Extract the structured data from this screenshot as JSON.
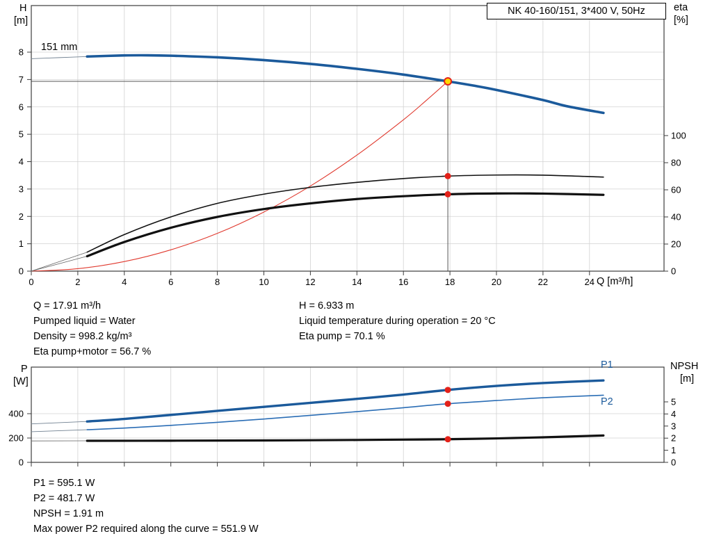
{
  "title_box": "NK 40-160/151, 3*400 V, 50Hz",
  "axis_labels": {
    "h": "H",
    "h_unit": "[m]",
    "eta": "eta",
    "eta_unit": "[%]",
    "q": "Q [m³/h]",
    "p": "P",
    "p_unit": "[W]",
    "npsh": "NPSH",
    "npsh_unit": "[m]"
  },
  "curve_labels": {
    "impeller": "151 mm",
    "p1": "P1",
    "p2": "P2"
  },
  "info_top_left": [
    "Q = 17.91 m³/h",
    "Pumped liquid = Water",
    "Density = 998.2 kg/m³",
    "Eta pump+motor = 56.7 %"
  ],
  "info_top_right": [
    "H = 6.933 m",
    "Liquid temperature during operation = 20 °C",
    "Eta pump = 70.1 %"
  ],
  "info_bottom": [
    "P1 = 595.1 W",
    "P2 = 481.7 W",
    "NPSH = 1.91 m",
    "Max power P2 required along the curve = 551.9 W"
  ],
  "colors": {
    "curve_blue": "#1b5a9b",
    "curve_blue_thin": "#2a6db5",
    "curve_black": "#111111",
    "system_red": "#e0392e",
    "marker_red": "#e32119",
    "duty_yellow": "#ffd800",
    "grid": "#d2d2d2",
    "frame": "#3c3c3c"
  },
  "chart_data": [
    {
      "type": "line",
      "title": "NK 40-160/151, 3*400 V, 50Hz",
      "xlabel": "Q [m³/h]",
      "ylabel_left": "H [m]",
      "ylabel_right": "eta [%]",
      "xlim": [
        0,
        27.2
      ],
      "ylim_left": [
        0,
        9.7
      ],
      "ylim_right": [
        0,
        196
      ],
      "grid": true,
      "q_ticks": [
        0,
        2,
        4,
        6,
        8,
        10,
        12,
        14,
        16,
        18,
        20,
        22,
        24
      ],
      "h_ticks": [
        0,
        1,
        2,
        3,
        4,
        5,
        6,
        7,
        8
      ],
      "eta_ticks": [
        0,
        20,
        40,
        60,
        80,
        100
      ],
      "duty_point": {
        "q": 17.91,
        "h": 6.933,
        "eta_pump": 70.1,
        "eta_pump_motor": 56.7
      },
      "series": [
        {
          "name": "head-ext",
          "axis": "H",
          "color": "#708090",
          "width": 0.9,
          "points": [
            [
              0,
              7.76
            ],
            [
              1.2,
              7.8
            ],
            [
              2.4,
              7.84
            ]
          ]
        },
        {
          "name": "head-151mm",
          "axis": "H",
          "color": "#1b5a9b",
          "width": 3.6,
          "points": [
            [
              2.4,
              7.84
            ],
            [
              4,
              7.88
            ],
            [
              5,
              7.885
            ],
            [
              6,
              7.87
            ],
            [
              8,
              7.81
            ],
            [
              10,
              7.71
            ],
            [
              12,
              7.57
            ],
            [
              14,
              7.39
            ],
            [
              16,
              7.18
            ],
            [
              17.91,
              6.933
            ],
            [
              19,
              6.78
            ],
            [
              20,
              6.62
            ],
            [
              22,
              6.25
            ],
            [
              23,
              6.03
            ],
            [
              24.6,
              5.78
            ]
          ]
        },
        {
          "name": "system-curve",
          "axis": "H",
          "color": "#e0392e",
          "width": 1.1,
          "points": [
            [
              0,
              0
            ],
            [
              2,
              0.09
            ],
            [
              4,
              0.35
            ],
            [
              6,
              0.78
            ],
            [
              8,
              1.38
            ],
            [
              10,
              2.16
            ],
            [
              12,
              3.11
            ],
            [
              14,
              4.24
            ],
            [
              16,
              5.53
            ],
            [
              17,
              6.25
            ],
            [
              17.91,
              6.933
            ]
          ]
        },
        {
          "name": "eta-pump-ext",
          "axis": "eta",
          "color": "#666666",
          "width": 0.8,
          "points": [
            [
              0,
              0
            ],
            [
              2.4,
              14
            ]
          ]
        },
        {
          "name": "eta-pump",
          "axis": "eta",
          "color": "#111111",
          "width": 1.6,
          "points": [
            [
              2.4,
              14
            ],
            [
              4,
              27
            ],
            [
              6,
              40
            ],
            [
              8,
              50
            ],
            [
              10,
              56.8
            ],
            [
              12,
              61.8
            ],
            [
              14,
              65.5
            ],
            [
              16,
              68.3
            ],
            [
              17.91,
              70.1
            ],
            [
              20,
              70.9
            ],
            [
              22,
              70.8
            ],
            [
              24.6,
              69.4
            ]
          ]
        },
        {
          "name": "eta-pump-motor-ext",
          "axis": "eta",
          "color": "#666666",
          "width": 0.8,
          "points": [
            [
              0,
              0
            ],
            [
              2.4,
              11
            ]
          ]
        },
        {
          "name": "eta-pump-motor",
          "axis": "eta",
          "color": "#111111",
          "width": 3.2,
          "points": [
            [
              2.4,
              11
            ],
            [
              4,
              21.5
            ],
            [
              6,
              32
            ],
            [
              8,
              40
            ],
            [
              10,
              45.8
            ],
            [
              12,
              50
            ],
            [
              14,
              53.2
            ],
            [
              16,
              55.3
            ],
            [
              17.91,
              56.7
            ],
            [
              20,
              57.3
            ],
            [
              22,
              57.2
            ],
            [
              24.6,
              56.3
            ]
          ]
        }
      ],
      "markers": [
        {
          "axis": "H",
          "q": 17.91,
          "value": 6.933,
          "style": "duty"
        },
        {
          "axis": "eta",
          "q": 17.91,
          "value": 70.1,
          "style": "dot"
        },
        {
          "axis": "eta",
          "q": 17.91,
          "value": 56.7,
          "style": "dot"
        }
      ]
    },
    {
      "type": "line",
      "xlabel": "",
      "ylabel_left": "P [W]",
      "ylabel_right": "NPSH [m]",
      "grid": true,
      "q_ticks": [
        0,
        2,
        4,
        6,
        8,
        10,
        12,
        14,
        16,
        18,
        20,
        22,
        24
      ],
      "p_ticks": [
        0,
        200,
        400
      ],
      "npsh_ticks": [
        0,
        1,
        2,
        3,
        4,
        5
      ],
      "series": [
        {
          "name": "p1-ext",
          "axis": "P",
          "color": "#708090",
          "width": 0.9,
          "points": [
            [
              0,
              316
            ],
            [
              2.4,
              336
            ]
          ]
        },
        {
          "name": "p1",
          "axis": "P",
          "color": "#1b5a9b",
          "width": 3.4,
          "points": [
            [
              2.4,
              336
            ],
            [
              4,
              357
            ],
            [
              6,
              390
            ],
            [
              8,
              423
            ],
            [
              10,
              456
            ],
            [
              12,
              489
            ],
            [
              14,
              522
            ],
            [
              16,
              557
            ],
            [
              17.91,
              595.1
            ],
            [
              20,
              628
            ],
            [
              22,
              652
            ],
            [
              24.6,
              673
            ]
          ]
        },
        {
          "name": "p2-ext",
          "axis": "P",
          "color": "#708090",
          "width": 0.9,
          "points": [
            [
              0,
              252
            ],
            [
              2.4,
              268
            ]
          ]
        },
        {
          "name": "p2",
          "axis": "P",
          "color": "#2a6db5",
          "width": 1.6,
          "points": [
            [
              2.4,
              268
            ],
            [
              4,
              282
            ],
            [
              6,
              304
            ],
            [
              8,
              329
            ],
            [
              10,
              356
            ],
            [
              12,
              386
            ],
            [
              14,
              417
            ],
            [
              16,
              449
            ],
            [
              17.91,
              481.7
            ],
            [
              20,
              508
            ],
            [
              22,
              531
            ],
            [
              24.6,
              551.9
            ]
          ]
        },
        {
          "name": "npsh-ext",
          "axis": "NPSH",
          "color": "#666666",
          "width": 0.8,
          "points": [
            [
              0,
              1.77
            ],
            [
              2.4,
              1.78
            ]
          ]
        },
        {
          "name": "npsh",
          "axis": "NPSH",
          "color": "#111111",
          "width": 3.2,
          "points": [
            [
              2.4,
              1.78
            ],
            [
              6,
              1.79
            ],
            [
              10,
              1.81
            ],
            [
              14,
              1.85
            ],
            [
              16,
              1.88
            ],
            [
              17.91,
              1.91
            ],
            [
              20,
              1.98
            ],
            [
              22,
              2.07
            ],
            [
              24.6,
              2.22
            ]
          ]
        }
      ],
      "markers": [
        {
          "axis": "P",
          "q": 17.91,
          "value": 595.1,
          "style": "dot"
        },
        {
          "axis": "P",
          "q": 17.91,
          "value": 481.7,
          "style": "dot"
        },
        {
          "axis": "NPSH",
          "q": 17.91,
          "value": 1.91,
          "style": "dot"
        }
      ]
    }
  ]
}
